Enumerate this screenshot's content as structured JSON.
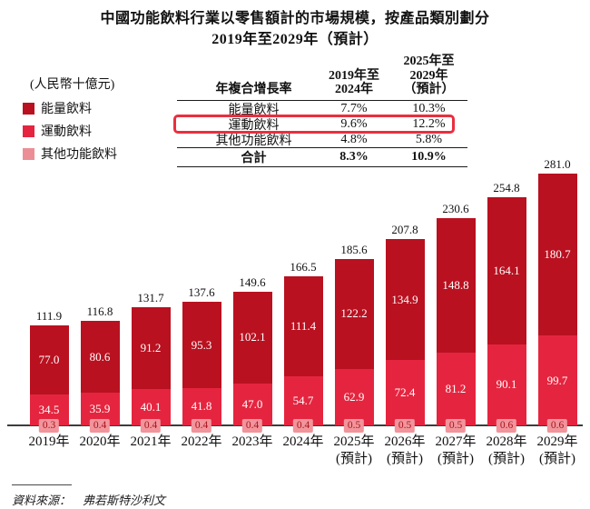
{
  "title": {
    "line1": "中國功能飲料行業以零售額計的市場規模，按產品類別劃分",
    "line2": "2019年至2029年（預計）"
  },
  "unit_label": "(人民幣十億元)",
  "cagr_table": {
    "header": {
      "metric": "年複合增長率",
      "period1": "2019年至\n2024年",
      "period2": "2025年至\n2029年\n（預計）"
    },
    "rows": [
      {
        "label": "能量飲料",
        "period1": "7.7%",
        "period2": "10.3%",
        "highlight": false
      },
      {
        "label": "運動飲料",
        "period1": "9.6%",
        "period2": "12.2%",
        "highlight": true
      },
      {
        "label": "其他功能飲料",
        "period1": "4.8%",
        "period2": "5.8%",
        "highlight": false
      }
    ],
    "total_row": {
      "label": "合計",
      "period1": "8.3%",
      "period2": "10.9%"
    },
    "highlight_color": "#ea2e3e"
  },
  "chart_data": {
    "type": "bar",
    "stacked": true,
    "title": "中國功能飲料行業以零售額計的市場規模，按產品類別劃分 2019年至2029年（預計）",
    "ylabel": "(人民幣十億元)",
    "ylim": [
      0,
      281
    ],
    "grid": false,
    "legend_position": "top-left",
    "categories": [
      "2019年",
      "2020年",
      "2021年",
      "2022年",
      "2023年",
      "2024年",
      "2025年\n(預計)",
      "2026年\n(預計)",
      "2027年\n(預計)",
      "2028年\n(預計)",
      "2029年\n(預計)"
    ],
    "series": [
      {
        "name": "能量飲料",
        "color": "#b91120",
        "values": [
          77.0,
          80.6,
          91.2,
          95.3,
          102.1,
          111.4,
          122.2,
          134.9,
          148.8,
          164.1,
          180.7
        ]
      },
      {
        "name": "運動飲料",
        "color": "#e5253f",
        "values": [
          34.5,
          35.9,
          40.1,
          41.8,
          47.0,
          54.7,
          62.9,
          72.4,
          81.2,
          90.1,
          99.7
        ]
      },
      {
        "name": "其他功能飲料",
        "color": "#ec8e96",
        "values": [
          0.3,
          0.4,
          0.4,
          0.4,
          0.4,
          0.4,
          0.5,
          0.5,
          0.5,
          0.6,
          0.6
        ]
      }
    ],
    "totals": [
      111.9,
      116.8,
      131.7,
      137.6,
      149.6,
      166.5,
      185.6,
      207.8,
      230.6,
      254.8,
      281.0
    ],
    "other_chip_bg": "#f2949b",
    "other_chip_text": "#a8141d"
  },
  "source": "資料來源：　弗若斯特沙利文"
}
